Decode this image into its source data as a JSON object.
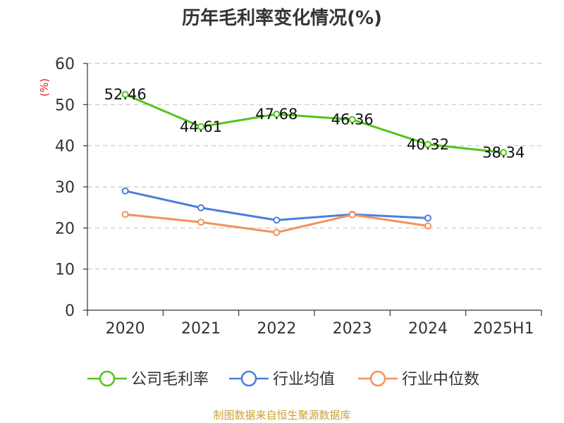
{
  "chart_data": {
    "type": "line",
    "title": "历年毛利率变化情况(%)",
    "ylabel": "(%)",
    "categories": [
      "2020",
      "2021",
      "2022",
      "2023",
      "2024",
      "2025H1"
    ],
    "ylim": [
      0,
      60
    ],
    "yticks": [
      0,
      10,
      20,
      30,
      40,
      50,
      60
    ],
    "grid": true,
    "legend_position": "bottom",
    "series": [
      {
        "name": "公司毛利率",
        "color": "#52c41a",
        "values": [
          52.46,
          44.61,
          47.68,
          46.36,
          40.32,
          38.34
        ],
        "labels": [
          "52.46",
          "44.61",
          "47.68",
          "46.36",
          "40.32",
          "38.34"
        ]
      },
      {
        "name": "行业均值",
        "color": "#4a7fdc",
        "values": [
          29.0,
          24.9,
          21.9,
          23.3,
          22.4,
          null
        ]
      },
      {
        "name": "行业中位数",
        "color": "#f4915e",
        "values": [
          23.3,
          21.4,
          18.9,
          23.2,
          20.5,
          null
        ]
      }
    ],
    "source": "制图数据来自恒生聚源数据库"
  }
}
